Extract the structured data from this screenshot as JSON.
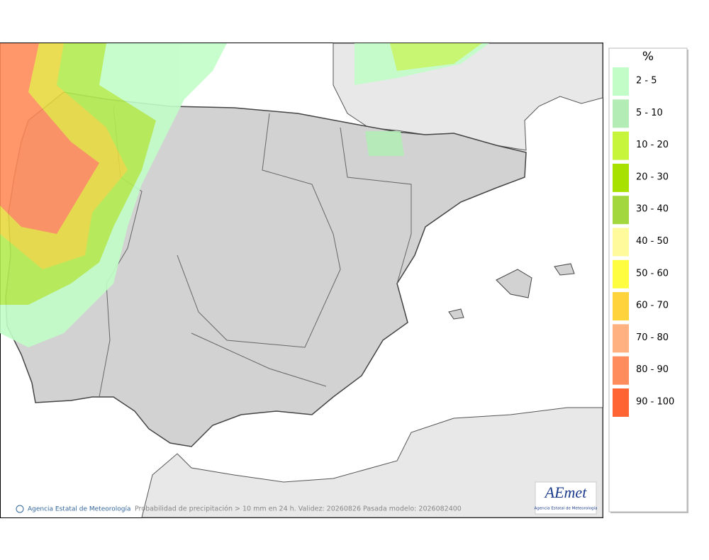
{
  "map": {
    "caption": "Probabilidad de precipitación > 10 mm en 24 h. Validez: 20260826 Pasada modelo: 2026082400",
    "credit": "Agencia Estatal de Meteorología",
    "logo": {
      "name": "AEmet",
      "subtitle": "Agencia Estatal de Meteorología"
    }
  },
  "legend": {
    "title": "%",
    "items": [
      {
        "label": "2 - 5",
        "color": "#c2fdc8"
      },
      {
        "label": "5 - 10",
        "color": "#b4ecb6"
      },
      {
        "label": "10 - 20",
        "color": "#c6f53c"
      },
      {
        "label": "20 - 30",
        "color": "#a8e100"
      },
      {
        "label": "30 - 40",
        "color": "#a2d83e"
      },
      {
        "label": "40 - 50",
        "color": "#fffb9c"
      },
      {
        "label": "50 - 60",
        "color": "#fffd40"
      },
      {
        "label": "60 - 70",
        "color": "#ffd33c"
      },
      {
        "label": "70 - 80",
        "color": "#ffb182"
      },
      {
        "label": "80 - 90",
        "color": "#ff8c5c"
      },
      {
        "label": "90 - 100",
        "color": "#ff6432"
      }
    ]
  }
}
